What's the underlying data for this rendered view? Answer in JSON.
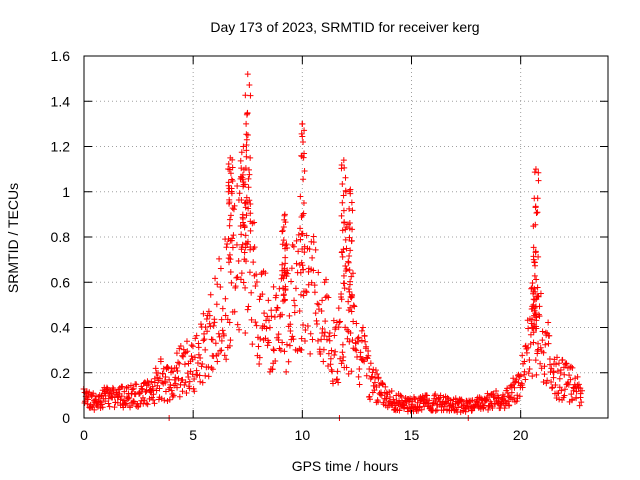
{
  "chart_data": {
    "type": "scatter",
    "title": "Day 173 of 2023, SRMTID for receiver kerg",
    "xlabel": "GPS time / hours",
    "ylabel": "SRMTID / TECUs",
    "xlim": [
      0,
      24
    ],
    "ylim": [
      0,
      1.6
    ],
    "xticks": [
      0,
      5,
      10,
      15,
      20
    ],
    "xtick_labels": [
      "0",
      "5",
      "10",
      "15",
      "20"
    ],
    "yticks": [
      0,
      0.2,
      0.4,
      0.6,
      0.8,
      1.0,
      1.2,
      1.4,
      1.6
    ],
    "ytick_labels": [
      "0",
      "0.2",
      "0.4",
      "0.6",
      "0.8",
      "1",
      "1.2",
      "1.4",
      "1.6"
    ],
    "grid": true,
    "marker": "plus",
    "series": [
      {
        "name": "kerg",
        "color": "#ff0000",
        "x_range": [
          0,
          22.8
        ],
        "profile": [
          [
            0.0,
            0.08
          ],
          [
            0.5,
            0.07
          ],
          [
            1.0,
            0.09
          ],
          [
            1.5,
            0.09
          ],
          [
            2.0,
            0.09
          ],
          [
            2.5,
            0.1
          ],
          [
            3.0,
            0.11
          ],
          [
            3.5,
            0.17
          ],
          [
            4.0,
            0.16
          ],
          [
            4.5,
            0.22
          ],
          [
            5.0,
            0.22
          ],
          [
            5.5,
            0.32
          ],
          [
            6.0,
            0.4
          ],
          [
            6.5,
            0.55
          ],
          [
            7.0,
            0.72
          ],
          [
            7.5,
            0.72
          ],
          [
            8.0,
            0.5
          ],
          [
            8.5,
            0.38
          ],
          [
            9.0,
            0.4
          ],
          [
            9.5,
            0.5
          ],
          [
            10.0,
            0.55
          ],
          [
            10.5,
            0.52
          ],
          [
            11.0,
            0.45
          ],
          [
            11.5,
            0.3
          ],
          [
            12.0,
            0.45
          ],
          [
            12.5,
            0.35
          ],
          [
            13.0,
            0.2
          ],
          [
            13.5,
            0.12
          ],
          [
            14.0,
            0.08
          ],
          [
            15.0,
            0.06
          ],
          [
            16.0,
            0.07
          ],
          [
            17.0,
            0.06
          ],
          [
            17.5,
            0.05
          ],
          [
            18.0,
            0.06
          ],
          [
            19.0,
            0.08
          ],
          [
            19.5,
            0.1
          ],
          [
            20.0,
            0.15
          ],
          [
            20.5,
            0.4
          ],
          [
            21.0,
            0.35
          ],
          [
            21.5,
            0.2
          ],
          [
            22.0,
            0.16
          ],
          [
            22.5,
            0.15
          ],
          [
            22.8,
            0.1
          ]
        ],
        "spikes": [
          {
            "x": 7.5,
            "peak": 1.52
          },
          {
            "x": 6.7,
            "peak": 1.15
          },
          {
            "x": 7.3,
            "peak": 1.2
          },
          {
            "x": 9.2,
            "peak": 0.9
          },
          {
            "x": 10.0,
            "peak": 1.3
          },
          {
            "x": 11.9,
            "peak": 1.14
          },
          {
            "x": 12.2,
            "peak": 1.01
          },
          {
            "x": 20.7,
            "peak": 1.1
          },
          {
            "x": 20.6,
            "peak": 0.7
          }
        ],
        "zero_points": [
          3.9,
          11.7,
          17.6
        ]
      }
    ]
  }
}
